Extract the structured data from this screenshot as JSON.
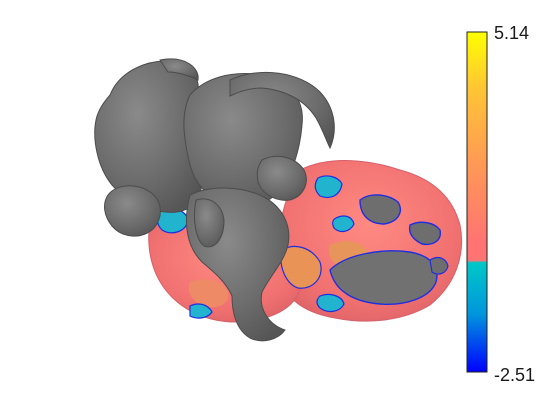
{
  "viewer": {
    "background": "#ffffff",
    "mesh_color": "#6e6e6e",
    "mesh_edge_color": "#4c4c4c",
    "overlay_outline_color": "#1f2fe0"
  },
  "colorbar": {
    "max_label": "5.14",
    "min_label": "-2.51",
    "max": 5.14,
    "min": -2.51,
    "gradient_stops": [
      {
        "value": 5.14,
        "color": "#ffff00"
      },
      {
        "value": 3.9,
        "color": "#ffc634"
      },
      {
        "value": 2.2,
        "color": "#ff9a55"
      },
      {
        "value": 0.4,
        "color": "#ff7373"
      },
      {
        "value": 0.0,
        "color": "#ff7373"
      },
      {
        "value": -0.05,
        "color": "#00c8c8"
      },
      {
        "value": -1.2,
        "color": "#0096dc"
      },
      {
        "value": -2.51,
        "color": "#0000ff"
      }
    ]
  },
  "overlay": {
    "positive_colors": [
      "#f07878",
      "#f28a68",
      "#e7955a"
    ],
    "negative_color": "#22b4cf"
  }
}
